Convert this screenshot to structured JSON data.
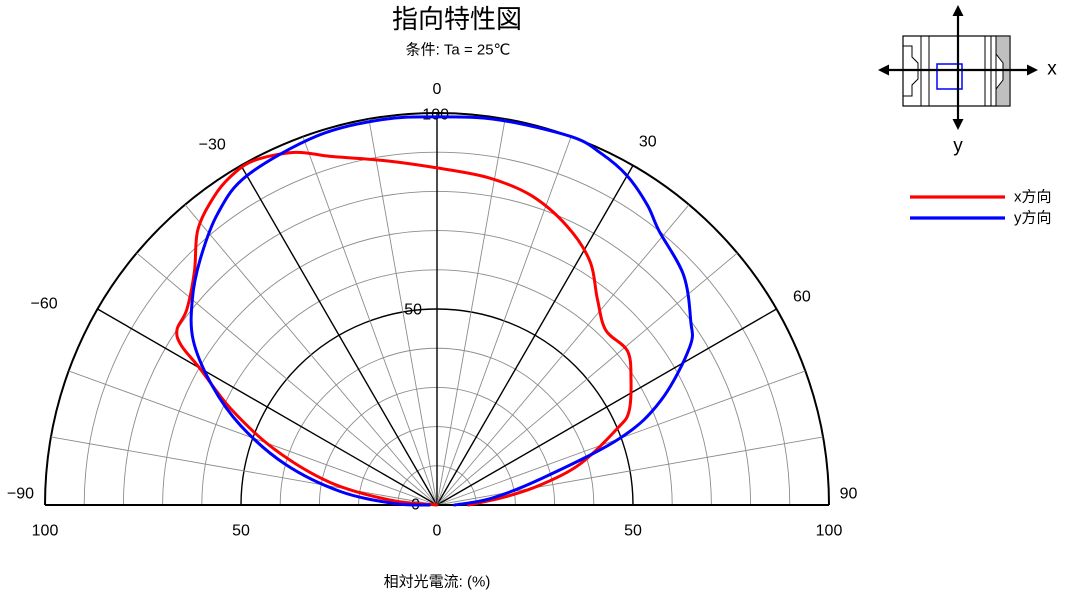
{
  "chart_data": {
    "type": "line",
    "coordinate_system": "polar",
    "title": "指向特性図",
    "subtitle": "条件: Ta = 25℃",
    "xlabel": "相対光電流: (%)",
    "theta_range": [
      -90,
      90
    ],
    "r_range": [
      0,
      100
    ],
    "theta_ticks": [
      {
        "value": -90,
        "label": "−90"
      },
      {
        "value": -60,
        "label": "−60"
      },
      {
        "value": -30,
        "label": "−30"
      },
      {
        "value": 0,
        "label": "0"
      },
      {
        "value": 30,
        "label": "30"
      },
      {
        "value": 60,
        "label": "60"
      },
      {
        "value": 90,
        "label": "90"
      }
    ],
    "radial_ticks": [
      {
        "value": 100,
        "label": "100"
      },
      {
        "value": 50,
        "label": "50"
      },
      {
        "value": 0,
        "label": "0"
      }
    ],
    "baseline_ticks": [
      {
        "value": 100,
        "side": "left",
        "label": "100"
      },
      {
        "value": 50,
        "side": "left",
        "label": "50"
      },
      {
        "value": 0,
        "side": "center",
        "label": "0"
      },
      {
        "value": 50,
        "side": "right",
        "label": "50"
      },
      {
        "value": 100,
        "side": "right",
        "label": "100"
      }
    ],
    "grid": true,
    "legend_position": "top-right",
    "series": [
      {
        "name": "x方向",
        "color": "#ff0000",
        "theta": [
          -90,
          -84,
          -78,
          -71,
          -65,
          -60,
          -58,
          -56,
          -52,
          -46,
          -41,
          -36,
          -32,
          -28,
          -22,
          -17,
          -9,
          0,
          9,
          17,
          25,
          32,
          38,
          44,
          51,
          57,
          64,
          67,
          74,
          79,
          83,
          90
        ],
        "r": [
          0,
          12,
          28,
          44,
          58,
          70,
          77,
          80,
          81,
          86,
          93,
          97,
          99,
          99.5,
          97,
          93,
          89,
          86,
          84.5,
          82.5,
          78.5,
          73.5,
          66.5,
          62,
          62.5,
          59,
          54.5,
          50,
          38,
          27,
          18,
          8
        ]
      },
      {
        "name": "y方向",
        "color": "#0000ff",
        "theta": [
          -90,
          -88,
          -82,
          -75,
          -68,
          -62,
          -56,
          -50,
          -44,
          -37,
          -30,
          -18,
          -8,
          0,
          9,
          20,
          25,
          30,
          35,
          39,
          47,
          54,
          58,
          65,
          70,
          76,
          83,
          90
        ],
        "r": [
          2,
          11,
          25,
          40,
          54,
          65,
          75,
          81.5,
          87,
          93,
          97,
          99,
          99.3,
          99,
          99.5,
          100,
          99,
          97,
          93.5,
          90,
          86,
          80,
          76,
          63,
          49.5,
          27,
          14,
          4.5
        ]
      }
    ]
  },
  "diagram": {
    "x_label": "x",
    "y_label": "y"
  },
  "colors": {
    "major_grid": "#000000",
    "minor_grid": "#8c8c8c",
    "device_outline": "#000000",
    "device_shade": "#bfbfbf",
    "sensor_area": "#0000ff",
    "arrow": "#000000"
  }
}
